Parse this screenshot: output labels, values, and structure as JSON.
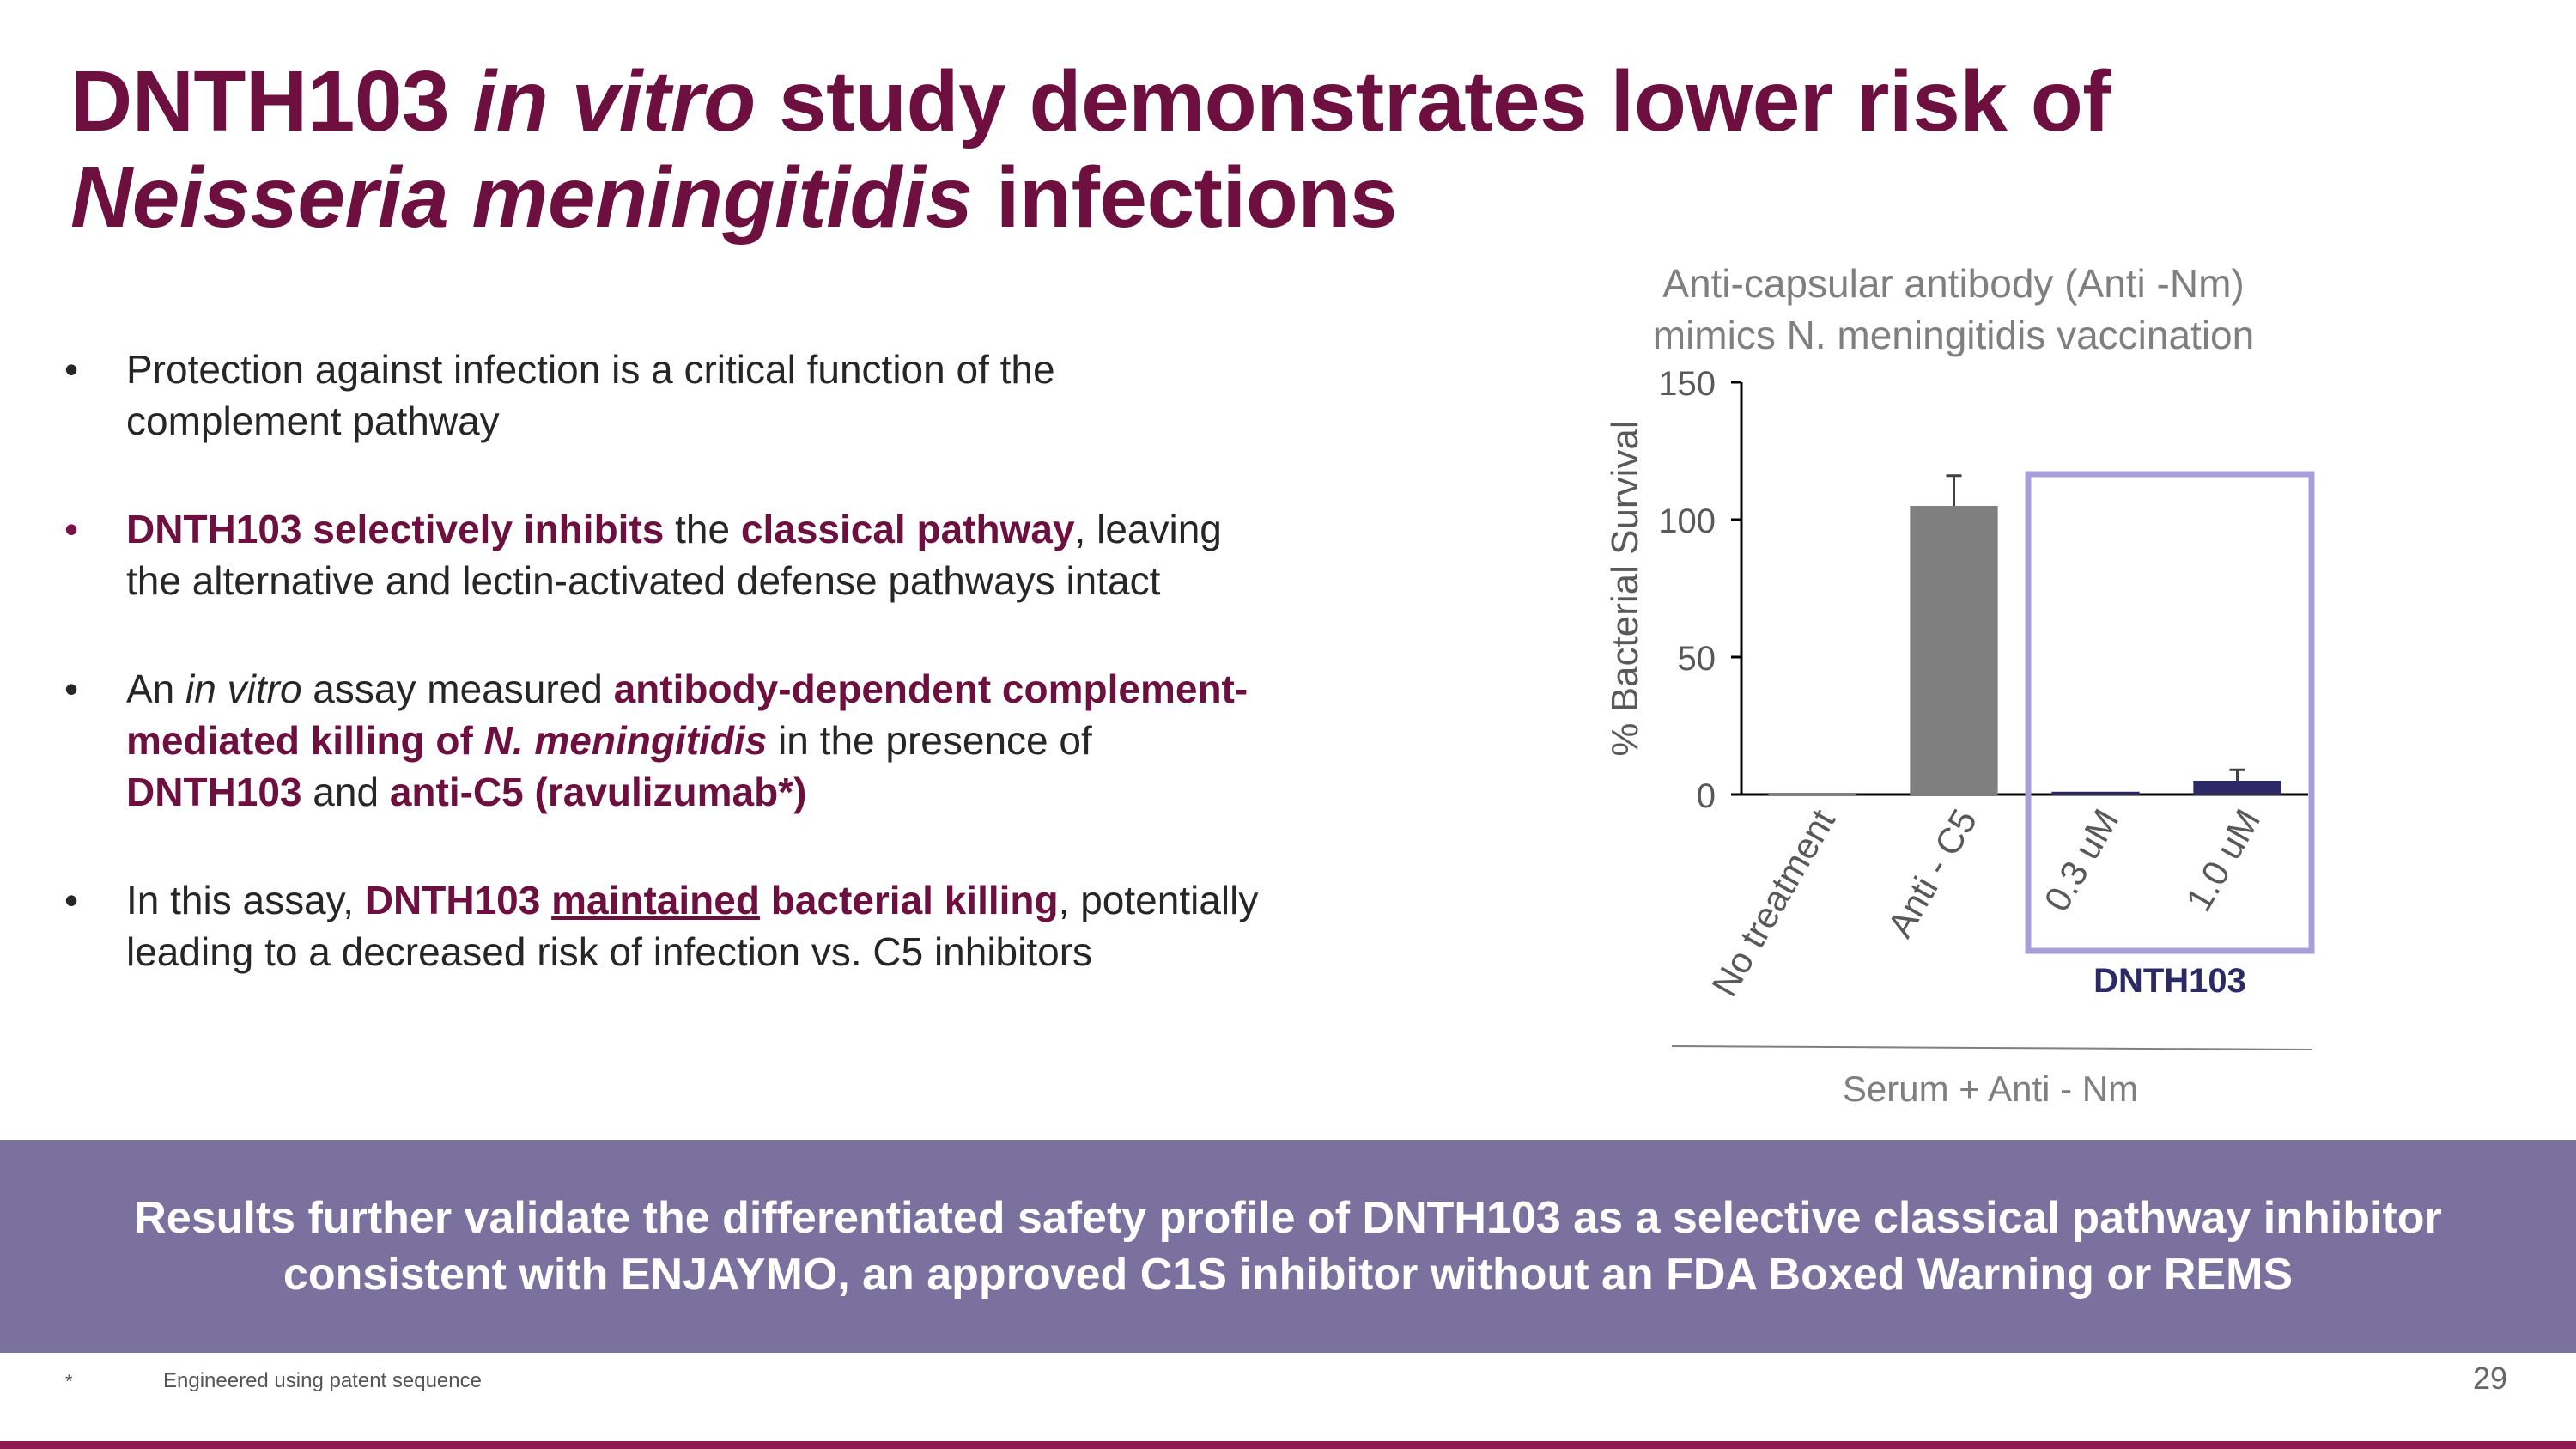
{
  "title": {
    "part1": "DNTH103 ",
    "part2_italic": "in vitro",
    "part3": " study demonstrates lower risk of",
    "part4_italic": "Neisseria meningitidis",
    "part5": " infections"
  },
  "bullets": {
    "b1": {
      "marker": "•",
      "text": "Protection against infection is a critical function of the complement pathway"
    },
    "b2": {
      "marker": "•",
      "bold1": "DNTH103 selectively inhibits",
      "plain1": " the ",
      "bold2": "classical pathway",
      "plain2": ", leaving the alternative and lectin-activated defense pathways intact"
    },
    "b3": {
      "marker": "•",
      "plain1": "An ",
      "italic1": "in vitro",
      "plain2": " assay measured ",
      "bold1": "antibody-dependent complement-mediated killing of ",
      "bold_italic": "N. meningitidis",
      "plain3": " in the presence of ",
      "bold2": "DNTH103",
      "plain4": " and ",
      "bold3": "anti-C5 (ravulizumab*)"
    },
    "b4": {
      "marker": "•",
      "plain1": "In this assay, ",
      "bold1": "DNTH103",
      "plain_space": " ",
      "bold_underline": "maintained",
      "bold2": " bacterial killing",
      "plain2": ", potentially leading to a decreased risk of infection vs. C5 inhibitors"
    }
  },
  "banner": {
    "line1": "Results further validate the differentiated safety profile of DNTH103 as a selective classical pathway inhibitor",
    "line2": "consistent with ENJAYMO, an approved C1S inhibitor without an FDA Boxed Warning or REMS"
  },
  "footer": {
    "star": "*",
    "note": "Engineered using patent sequence",
    "page": "29"
  },
  "chart_data": {
    "type": "bar",
    "title_line1": "Anti-capsular antibody (Anti -Nm)",
    "title_line2": "mimics N. meningitidis vaccination",
    "ylabel": "% Bacterial Survival",
    "xlabel": "Serum + Anti - Nm",
    "ylim": [
      0,
      150
    ],
    "yticks": [
      0,
      50,
      100,
      150
    ],
    "categories": [
      "No treatment",
      "Anti  - C5",
      "0.3 uM",
      "1.0 uM"
    ],
    "values": [
      0,
      105,
      1,
      5
    ],
    "errors": [
      0,
      11,
      0,
      4
    ],
    "bar_colors": [
      "#7f7f7f",
      "#7f7f7f",
      "#2c2a66",
      "#2c2a66"
    ],
    "group_box_label": "DNTH103",
    "group_box_color": "#a89fd8",
    "group_label_color": "#2c2a66"
  }
}
